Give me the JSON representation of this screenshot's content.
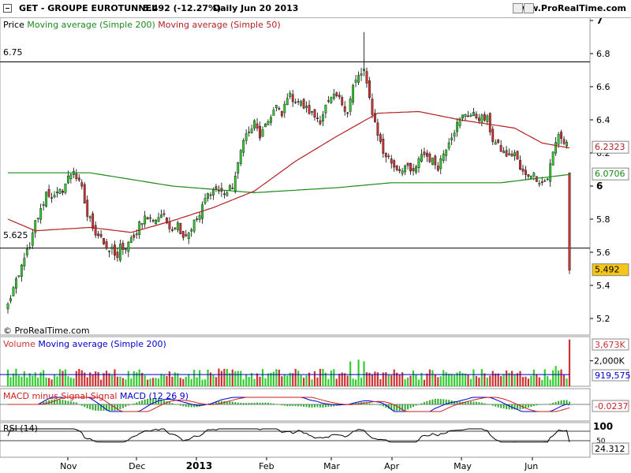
{
  "header": {
    "title": "GET - GROUPE EUROTUNNEL",
    "quote": "5.492 (-12.27%)",
    "period": "Daily  Jun 20 2013",
    "site": "www.ProRealTime.com"
  },
  "price_panel": {
    "legend_price": "Price",
    "legend_ma200": "Moving average (Simple 200)",
    "legend_ma50": "Moving average (Simple 50)",
    "watermark": "© ProRealTime.com",
    "hline_labels": [
      "6.75",
      "5.625"
    ],
    "label_ma50": "6.2323",
    "label_ma200": "6.0706",
    "label_last": "5.492"
  },
  "volume_panel": {
    "legend_volume": "Volume",
    "legend_ma": "Moving average (Simple 200)",
    "label_last": "3,673K",
    "label_tick": "2,000K",
    "label_ma": "919,575"
  },
  "macd_panel": {
    "legend_hist": "MACD minus Signal",
    "legend_signal": "Signal",
    "legend_macd": "MACD (12 26 9)",
    "label_last": "-0.0237"
  },
  "rsi_panel": {
    "legend": "RSI (14)",
    "label_100": "100",
    "label_50": "50",
    "label_last": "24.312"
  },
  "colors": {
    "up": "#33cc33",
    "down": "#cc3333",
    "ma200": "#1a8a1a",
    "ma50": "#b22222",
    "macd": "#0000cc",
    "signal": "#cc2222",
    "hist": "#33aa33",
    "last_label_bg": "#f5c518"
  },
  "chart_data": [
    {
      "type": "candlestick",
      "title": "GET - GROUPE EUROTUNNEL",
      "ylim": [
        5.1,
        7.0
      ],
      "yticks": [
        5.2,
        5.4,
        5.6,
        5.8,
        6,
        6.2,
        6.4,
        6.6,
        6.8,
        7
      ],
      "ytick_labels": [
        "5.2",
        "5.4",
        "5.6",
        "5.8",
        "6",
        "6.2",
        "6.4",
        "6.6",
        "6.8",
        "7"
      ],
      "x_labels": [
        "Nov",
        "Dec",
        "2013",
        "Feb",
        "Mar",
        "Apr",
        "May",
        "Jun"
      ],
      "hlines": [
        6.75,
        5.625
      ],
      "close_anchors": [
        [
          0,
          5.28
        ],
        [
          2,
          5.38
        ],
        [
          4,
          5.45
        ],
        [
          6,
          5.58
        ],
        [
          8,
          5.62
        ],
        [
          10,
          5.78
        ],
        [
          12,
          5.85
        ],
        [
          14,
          5.96
        ],
        [
          17,
          5.93
        ],
        [
          20,
          5.98
        ],
        [
          22,
          6.05
        ],
        [
          24,
          6.1
        ],
        [
          25,
          6.05
        ],
        [
          27,
          5.98
        ],
        [
          29,
          5.82
        ],
        [
          30,
          5.8
        ],
        [
          32,
          5.72
        ],
        [
          34,
          5.7
        ],
        [
          36,
          5.6
        ],
        [
          38,
          5.62
        ],
        [
          40,
          5.57
        ],
        [
          41,
          5.63
        ],
        [
          42,
          5.6
        ],
        [
          44,
          5.66
        ],
        [
          46,
          5.68
        ],
        [
          48,
          5.78
        ],
        [
          50,
          5.81
        ],
        [
          52,
          5.8
        ],
        [
          54,
          5.8
        ],
        [
          56,
          5.83
        ],
        [
          58,
          5.78
        ],
        [
          60,
          5.75
        ],
        [
          62,
          5.77
        ],
        [
          64,
          5.7
        ],
        [
          66,
          5.72
        ],
        [
          68,
          5.78
        ],
        [
          70,
          5.82
        ],
        [
          72,
          5.92
        ],
        [
          74,
          5.97
        ],
        [
          76,
          5.98
        ],
        [
          78,
          5.96
        ],
        [
          80,
          5.96
        ],
        [
          82,
          6.0
        ],
        [
          84,
          6.12
        ],
        [
          86,
          6.3
        ],
        [
          88,
          6.32
        ],
        [
          90,
          6.38
        ],
        [
          92,
          6.3
        ],
        [
          94,
          6.35
        ],
        [
          96,
          6.43
        ],
        [
          98,
          6.48
        ],
        [
          100,
          6.42
        ],
        [
          102,
          6.55
        ],
        [
          104,
          6.53
        ],
        [
          106,
          6.51
        ],
        [
          108,
          6.48
        ],
        [
          110,
          6.45
        ],
        [
          112,
          6.42
        ],
        [
          114,
          6.4
        ],
        [
          116,
          6.48
        ],
        [
          118,
          6.52
        ],
        [
          120,
          6.54
        ],
        [
          122,
          6.5
        ],
        [
          124,
          6.45
        ],
        [
          126,
          6.6
        ],
        [
          128,
          6.66
        ],
        [
          130,
          6.7
        ],
        [
          131,
          6.6
        ],
        [
          133,
          6.45
        ],
        [
          135,
          6.32
        ],
        [
          137,
          6.2
        ],
        [
          139,
          6.17
        ],
        [
          141,
          6.12
        ],
        [
          143,
          6.1
        ],
        [
          145,
          6.12
        ],
        [
          147,
          6.08
        ],
        [
          149,
          6.1
        ],
        [
          151,
          6.2
        ],
        [
          153,
          6.18
        ],
        [
          155,
          6.15
        ],
        [
          157,
          6.12
        ],
        [
          159,
          6.2
        ],
        [
          161,
          6.28
        ],
        [
          163,
          6.34
        ],
        [
          165,
          6.4
        ],
        [
          167,
          6.44
        ],
        [
          169,
          6.43
        ],
        [
          171,
          6.42
        ],
        [
          173,
          6.41
        ],
        [
          175,
          6.4
        ],
        [
          177,
          6.28
        ],
        [
          179,
          6.24
        ],
        [
          181,
          6.2
        ],
        [
          183,
          6.18
        ],
        [
          185,
          6.2
        ],
        [
          187,
          6.1
        ],
        [
          189,
          6.06
        ],
        [
          191,
          6.08
        ],
        [
          193,
          6.05
        ],
        [
          195,
          6.02
        ],
        [
          197,
          6.05
        ],
        [
          199,
          6.2
        ],
        [
          201,
          6.32
        ],
        [
          203,
          6.26
        ],
        [
          204,
          6.26
        ],
        [
          205,
          5.492
        ]
      ],
      "num_candles": 206,
      "last_close": 5.492,
      "last_change_pct": -12.27,
      "ma200_anchors": [
        [
          0,
          6.08
        ],
        [
          30,
          6.08
        ],
        [
          60,
          6.0
        ],
        [
          90,
          5.96
        ],
        [
          120,
          5.99
        ],
        [
          140,
          6.02
        ],
        [
          180,
          6.02
        ],
        [
          205,
          6.07
        ]
      ],
      "ma50_anchors": [
        [
          0,
          5.8
        ],
        [
          10,
          5.73
        ],
        [
          30,
          5.75
        ],
        [
          45,
          5.72
        ],
        [
          60,
          5.79
        ],
        [
          75,
          5.87
        ],
        [
          90,
          5.97
        ],
        [
          105,
          6.15
        ],
        [
          120,
          6.3
        ],
        [
          135,
          6.44
        ],
        [
          150,
          6.45
        ],
        [
          165,
          6.4
        ],
        [
          185,
          6.35
        ],
        [
          195,
          6.26
        ],
        [
          205,
          6.23
        ]
      ],
      "series": [
        {
          "name": "Moving average (Simple 200)",
          "last": 6.0706
        },
        {
          "name": "Moving average (Simple 50)",
          "last": 6.2323
        }
      ]
    },
    {
      "type": "bar",
      "title": "Volume",
      "yticks": [
        2000000
      ],
      "ytick_labels": [
        "2,000K"
      ],
      "last_value": 3673000,
      "ma200_value": 919575,
      "ylim": [
        0,
        3900000
      ]
    },
    {
      "type": "line",
      "title": "MACD (12 26 9)",
      "series": [
        {
          "name": "MACD minus Signal"
        },
        {
          "name": "Signal"
        },
        {
          "name": "MACD"
        }
      ],
      "last_value": -0.0237,
      "ylim": [
        -0.14,
        0.14
      ]
    },
    {
      "type": "line",
      "title": "RSI (14)",
      "yticks": [
        100,
        50
      ],
      "ylim": [
        0,
        100
      ],
      "last_value": 24.312
    }
  ]
}
